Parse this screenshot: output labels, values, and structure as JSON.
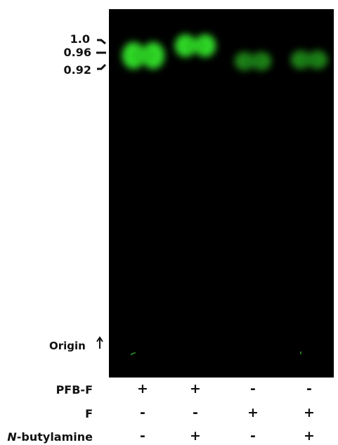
{
  "rf_labels": [
    "1.0",
    "0.96",
    "0.92"
  ],
  "origin_label": "Origin",
  "conditions": [
    {
      "label": "PFB-F",
      "signs": [
        "+",
        "+",
        "-",
        "-"
      ]
    },
    {
      "label": "F",
      "signs": [
        "-",
        "-",
        "+",
        "+"
      ]
    },
    {
      "label": "N-butylamine",
      "signs": [
        "-",
        "+",
        "-",
        "+"
      ]
    }
  ]
}
